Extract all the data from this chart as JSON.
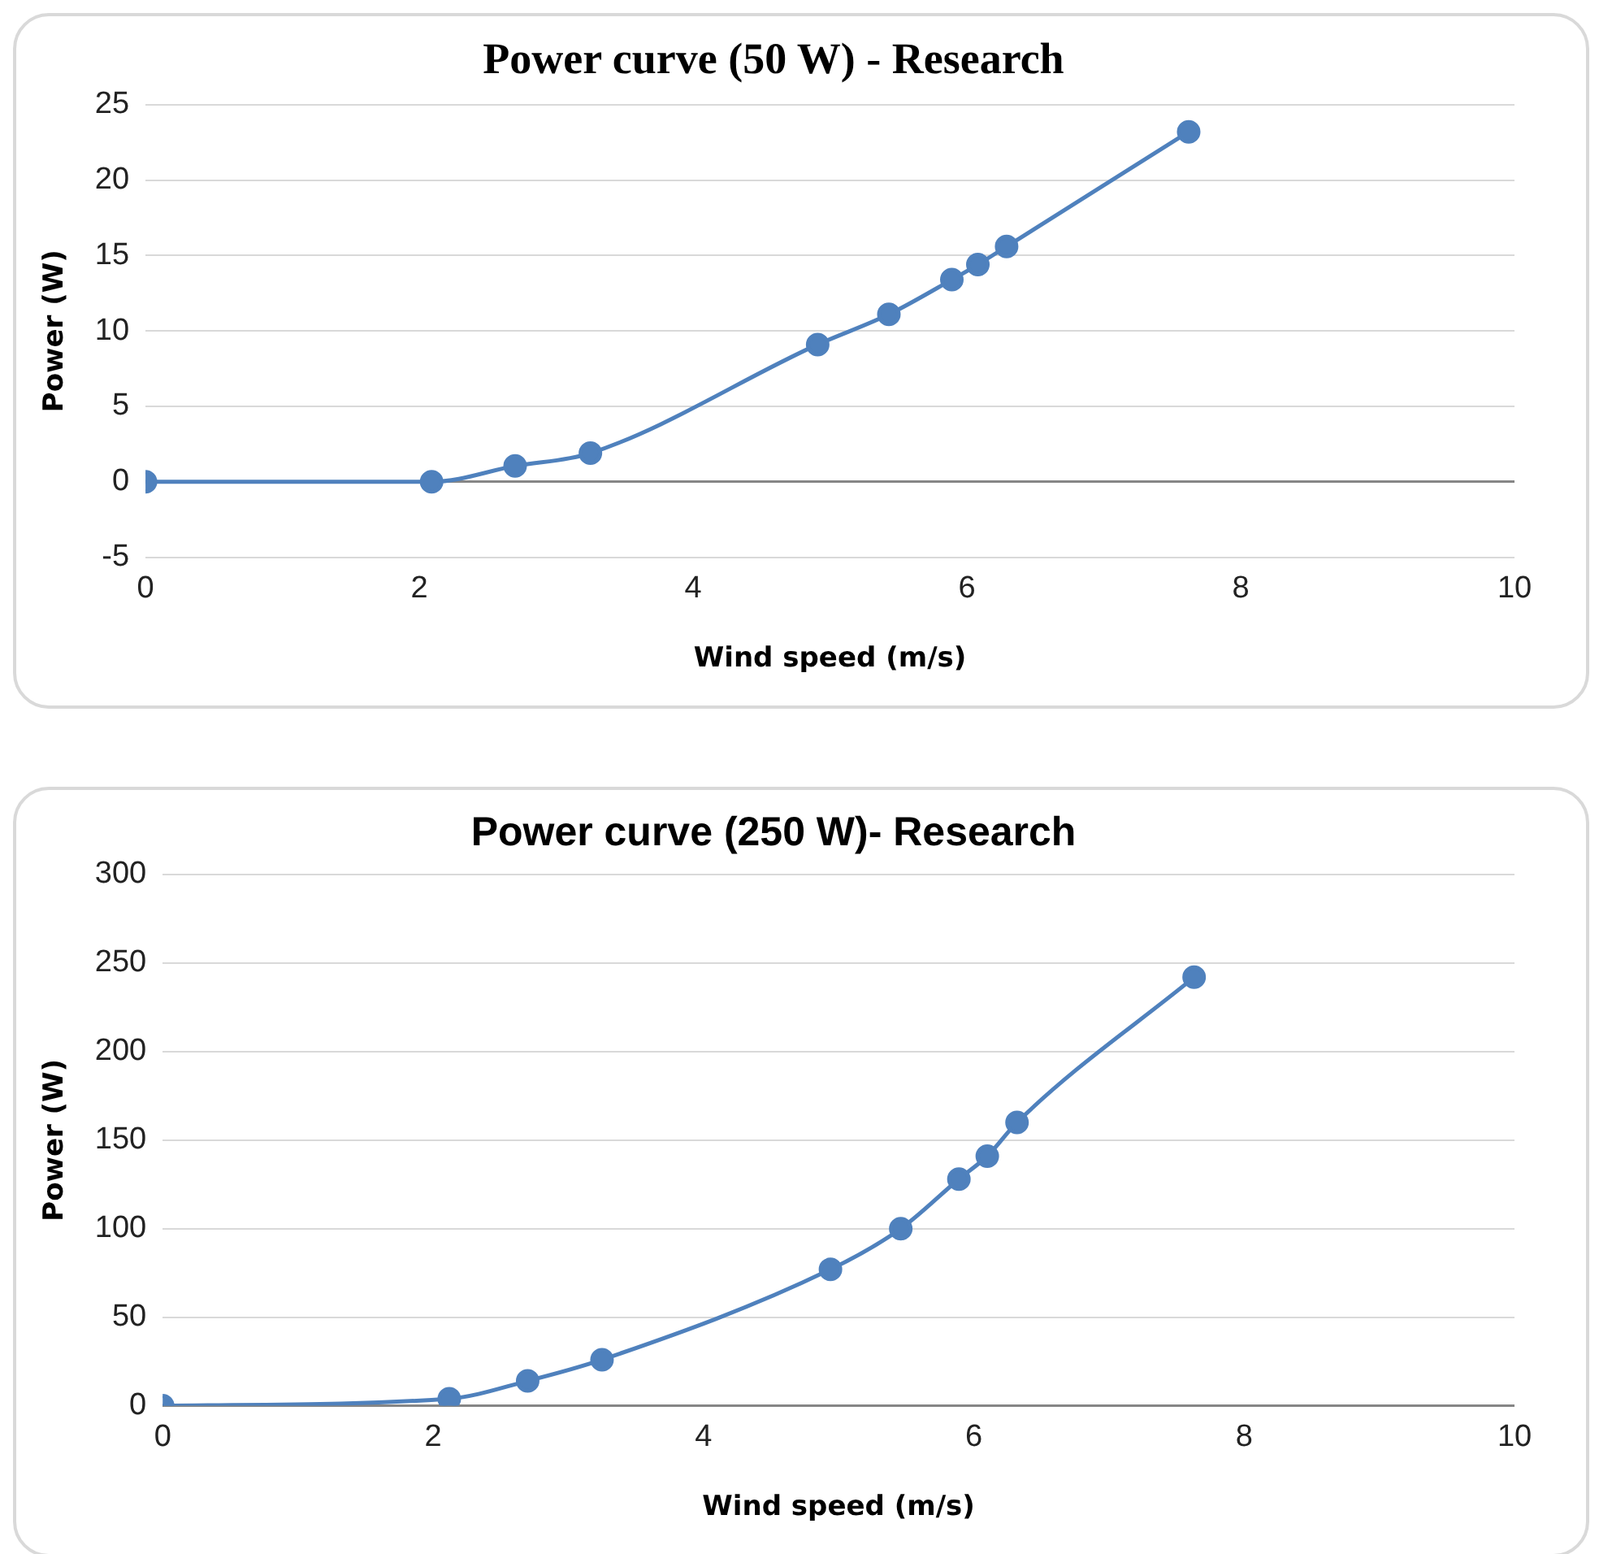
{
  "chart_data": [
    {
      "type": "line",
      "title": "Power curve (50 W) - Research",
      "xlabel": "Wind speed (m/s)",
      "ylabel": "Power (W)",
      "x": [
        0,
        2.09,
        2.7,
        3.25,
        4.91,
        5.43,
        5.89,
        6.08,
        6.29,
        7.62
      ],
      "series": [
        {
          "color": "#4f81bd",
          "values": [
            0,
            0,
            1.05,
            1.9,
            9.1,
            11.1,
            13.4,
            14.4,
            15.6,
            23.2
          ]
        }
      ],
      "xlim": [
        0,
        10
      ],
      "xticks": [
        0,
        2,
        4,
        6,
        8,
        10
      ],
      "ylim": [
        -5,
        25
      ],
      "yticks": [
        -5,
        0,
        5,
        10,
        15,
        20,
        25
      ],
      "grid": "y",
      "legend": false,
      "marker": "circle",
      "line_style": "solid"
    },
    {
      "type": "line",
      "title": "Power curve (250 W)- Research",
      "xlabel": "Wind speed (m/s)",
      "ylabel": "Power (W)",
      "x": [
        0,
        2.12,
        2.7,
        3.25,
        4.94,
        5.46,
        5.89,
        6.1,
        6.32,
        7.63
      ],
      "series": [
        {
          "color": "#4f81bd",
          "values": [
            0,
            4,
            14,
            26,
            77,
            100,
            128,
            141,
            160,
            242
          ]
        }
      ],
      "xlim": [
        0,
        10
      ],
      "xticks": [
        0,
        2,
        4,
        6,
        8,
        10
      ],
      "ylim": [
        0,
        300
      ],
      "yticks": [
        0,
        50,
        100,
        150,
        200,
        250,
        300
      ],
      "grid": "y",
      "legend": false,
      "marker": "circle",
      "line_style": "solid"
    }
  ]
}
